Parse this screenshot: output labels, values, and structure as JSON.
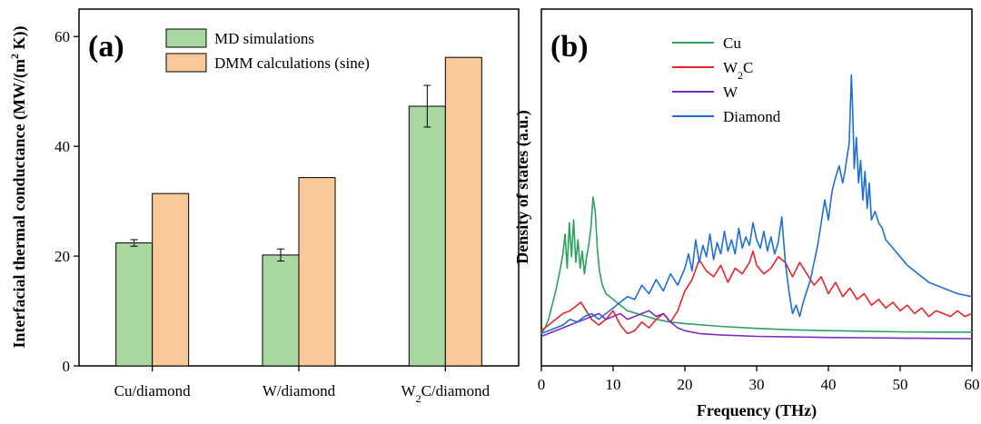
{
  "chart_data": [
    {
      "panel": "(a)",
      "type": "bar",
      "categories": [
        "Cu/diamond",
        "W/diamond",
        "W2C/diamond"
      ],
      "category_labels": [
        {
          "main": "Cu/diamond",
          "sub": "",
          "rest": ""
        },
        {
          "main": "W/diamond",
          "sub": "",
          "rest": ""
        },
        {
          "main": "W",
          "sub": "2",
          "rest": "C/diamond"
        }
      ],
      "series": [
        {
          "name": "MD simulations",
          "color": "#a8d8a0",
          "values": [
            22.4,
            20.2,
            47.3
          ],
          "errors": [
            0.6,
            1.1,
            3.8
          ]
        },
        {
          "name": "DMM calculations (sine)",
          "color": "#f9c89b",
          "values": [
            31.4,
            34.3,
            56.2
          ]
        }
      ],
      "ylabel": {
        "main": "Interfacial thermal conductance (MW/(m",
        "sup": "2",
        "rest": " K))"
      },
      "ylim": [
        0,
        65
      ],
      "yticks": [
        "0",
        "20",
        "40",
        "60"
      ],
      "legend_position": "top-center"
    },
    {
      "panel": "(b)",
      "type": "line",
      "xlabel": "Frequency (THz)",
      "ylabel": "Density of states (a.u.)",
      "xlim": [
        0,
        60
      ],
      "ylim": [
        0,
        1
      ],
      "xticks": [
        "0",
        "10",
        "20",
        "30",
        "40",
        "50",
        "60"
      ],
      "legend_position": "top-center",
      "series": [
        {
          "name": "Cu",
          "label": {
            "main": "Cu",
            "sub": "",
            "rest": ""
          },
          "color": "#2ca25f",
          "x": [
            0,
            0.5,
            1,
            1.5,
            2,
            2.5,
            3,
            3.3,
            3.6,
            3.9,
            4.2,
            4.5,
            4.8,
            5.1,
            5.4,
            5.7,
            6,
            6.3,
            6.6,
            6.9,
            7.2,
            7.5,
            7.8,
            8.1,
            8.5,
            9,
            10,
            11,
            12,
            14,
            16,
            18,
            20,
            25,
            30,
            35,
            40,
            45,
            50,
            55,
            60
          ],
          "y": [
            0.05,
            0.07,
            0.1,
            0.15,
            0.2,
            0.26,
            0.33,
            0.4,
            0.28,
            0.44,
            0.32,
            0.45,
            0.3,
            0.38,
            0.28,
            0.34,
            0.26,
            0.32,
            0.36,
            0.42,
            0.53,
            0.48,
            0.35,
            0.27,
            0.22,
            0.19,
            0.17,
            0.15,
            0.13,
            0.115,
            0.1,
            0.09,
            0.085,
            0.075,
            0.068,
            0.063,
            0.06,
            0.058,
            0.056,
            0.055,
            0.055
          ]
        },
        {
          "name": "W2C",
          "label": {
            "main": "W",
            "sub": "2",
            "rest": "C"
          },
          "color": "#e8232a",
          "x": [
            0,
            1,
            2,
            3,
            4,
            5,
            5.5,
            6,
            7,
            8,
            9,
            10,
            11,
            12,
            13,
            14,
            15,
            16,
            17,
            18,
            19,
            20,
            21,
            22,
            23,
            24,
            25,
            26,
            27,
            28,
            29,
            29.5,
            30,
            31,
            32,
            33,
            34,
            35,
            36,
            37,
            38,
            39,
            40,
            41,
            42,
            43,
            44,
            45,
            46,
            47,
            48,
            49,
            50,
            51,
            52,
            53,
            54,
            55,
            56,
            57,
            58,
            59,
            60
          ],
          "y": [
            0.06,
            0.08,
            0.1,
            0.12,
            0.13,
            0.15,
            0.16,
            0.14,
            0.1,
            0.08,
            0.1,
            0.13,
            0.08,
            0.05,
            0.06,
            0.09,
            0.07,
            0.1,
            0.12,
            0.09,
            0.13,
            0.2,
            0.24,
            0.31,
            0.27,
            0.25,
            0.29,
            0.23,
            0.28,
            0.26,
            0.3,
            0.34,
            0.29,
            0.26,
            0.28,
            0.32,
            0.3,
            0.25,
            0.3,
            0.26,
            0.22,
            0.25,
            0.19,
            0.23,
            0.18,
            0.21,
            0.17,
            0.19,
            0.15,
            0.17,
            0.14,
            0.16,
            0.13,
            0.15,
            0.12,
            0.14,
            0.11,
            0.13,
            0.12,
            0.11,
            0.13,
            0.11,
            0.12
          ]
        },
        {
          "name": "W",
          "label": {
            "main": "W",
            "sub": "",
            "rest": ""
          },
          "color": "#7b2cbf",
          "x": [
            0,
            1,
            2,
            3,
            4,
            5,
            6,
            7,
            8,
            9,
            10,
            11,
            12,
            13,
            14,
            15,
            16,
            17,
            18,
            19,
            20,
            22,
            25,
            30,
            35,
            40,
            45,
            50,
            55,
            60
          ],
          "y": [
            0.04,
            0.05,
            0.06,
            0.07,
            0.08,
            0.09,
            0.1,
            0.11,
            0.12,
            0.1,
            0.11,
            0.12,
            0.1,
            0.11,
            0.12,
            0.13,
            0.11,
            0.12,
            0.09,
            0.07,
            0.06,
            0.05,
            0.045,
            0.04,
            0.038,
            0.036,
            0.035,
            0.034,
            0.033,
            0.032
          ]
        },
        {
          "name": "Diamond",
          "label": {
            "main": "Diamond",
            "sub": "",
            "rest": ""
          },
          "color": "#1f6fd6",
          "x": [
            0,
            1,
            2,
            3,
            4,
            5,
            6,
            7,
            8,
            9,
            10,
            11,
            12,
            13,
            14,
            15,
            16,
            17,
            18,
            19,
            20,
            20.5,
            21,
            21.5,
            22,
            22.5,
            23,
            23.5,
            24,
            24.5,
            25,
            25.5,
            26,
            26.5,
            27,
            27.5,
            28,
            28.5,
            29,
            29.5,
            30,
            30.5,
            31,
            31.5,
            32,
            32.5,
            33,
            33.5,
            34,
            34.5,
            35,
            35.5,
            36,
            36.5,
            37,
            37.5,
            38,
            38.5,
            39,
            39.5,
            40,
            40.5,
            41,
            41.5,
            42,
            42.3,
            42.6,
            42.9,
            43.2,
            43.4,
            43.6,
            43.9,
            44.2,
            44.5,
            44.8,
            45.1,
            45.4,
            45.7,
            46,
            46.5,
            47,
            47.5,
            48,
            49,
            50,
            51,
            52,
            53,
            54,
            55,
            56,
            57,
            58,
            59,
            60
          ],
          "y": [
            0.05,
            0.06,
            0.07,
            0.08,
            0.1,
            0.09,
            0.11,
            0.12,
            0.1,
            0.12,
            0.14,
            0.16,
            0.18,
            0.17,
            0.22,
            0.19,
            0.24,
            0.2,
            0.26,
            0.22,
            0.28,
            0.33,
            0.27,
            0.38,
            0.3,
            0.36,
            0.32,
            0.4,
            0.31,
            0.37,
            0.33,
            0.41,
            0.34,
            0.38,
            0.33,
            0.42,
            0.35,
            0.39,
            0.36,
            0.44,
            0.38,
            0.35,
            0.41,
            0.34,
            0.39,
            0.33,
            0.37,
            0.46,
            0.3,
            0.2,
            0.12,
            0.15,
            0.11,
            0.16,
            0.2,
            0.24,
            0.3,
            0.36,
            0.44,
            0.52,
            0.45,
            0.55,
            0.6,
            0.64,
            0.58,
            0.62,
            0.67,
            0.72,
            0.96,
            0.82,
            0.63,
            0.74,
            0.58,
            0.66,
            0.52,
            0.62,
            0.49,
            0.58,
            0.45,
            0.48,
            0.44,
            0.42,
            0.38,
            0.35,
            0.32,
            0.29,
            0.27,
            0.25,
            0.23,
            0.22,
            0.21,
            0.2,
            0.19,
            0.185,
            0.18
          ]
        }
      ]
    }
  ]
}
